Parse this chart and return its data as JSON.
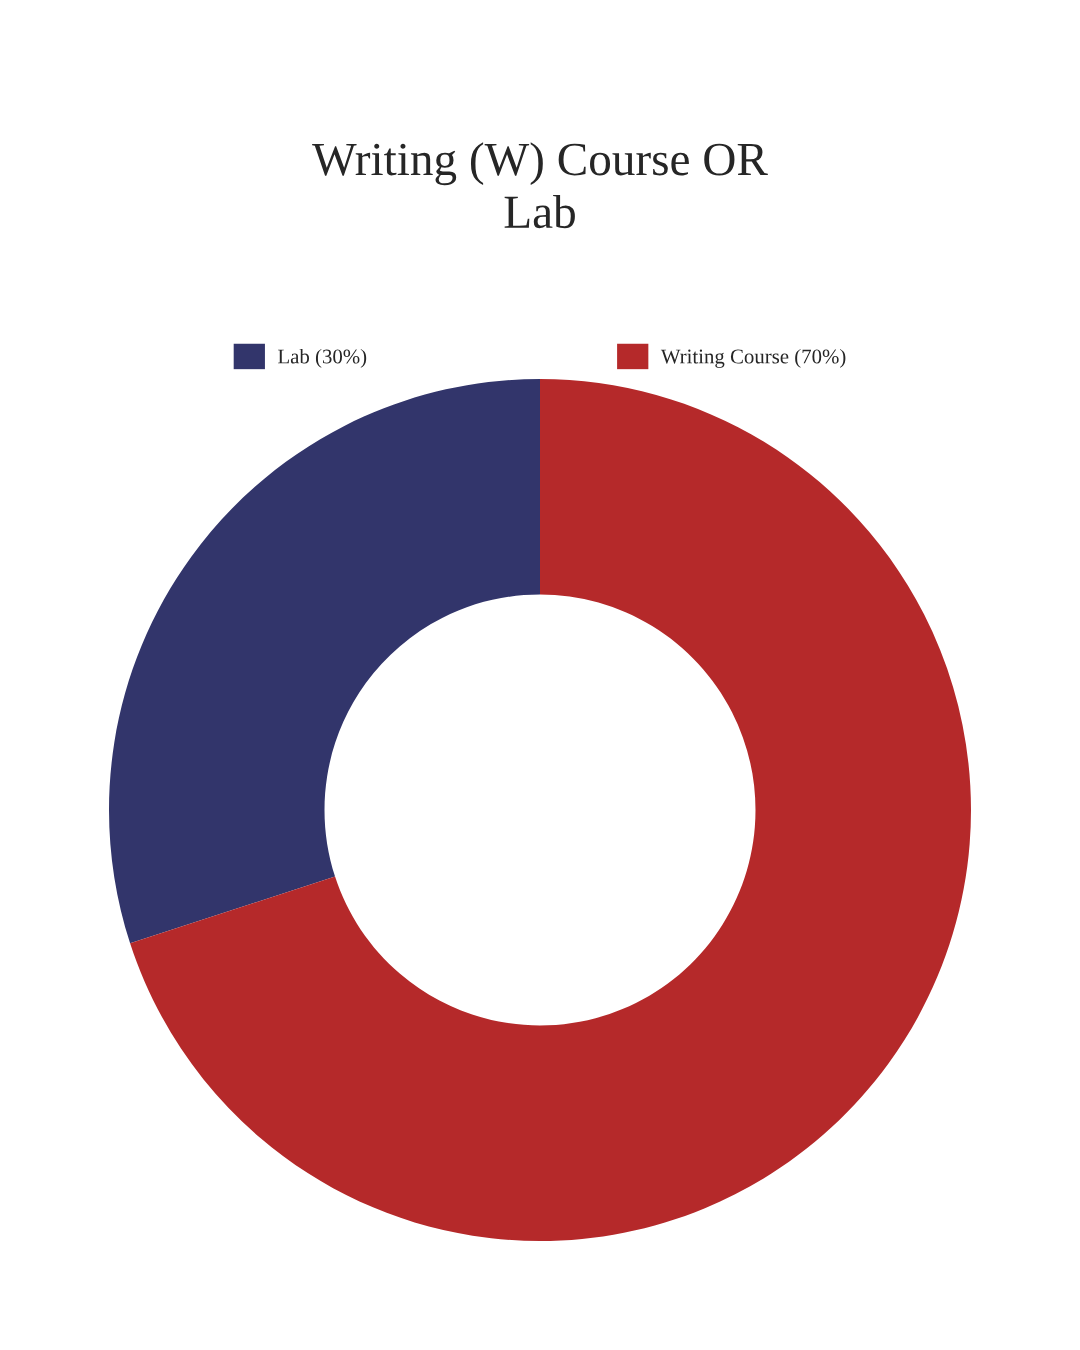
{
  "chart_data": {
    "type": "donut",
    "title": "Writing (W) Course OR\nLab",
    "categories": [
      "Lab (30%)",
      "Writing Course (70%)"
    ],
    "values": [
      30,
      70
    ],
    "colors": [
      "#32356b",
      "#b5292a"
    ],
    "legend": "top"
  }
}
